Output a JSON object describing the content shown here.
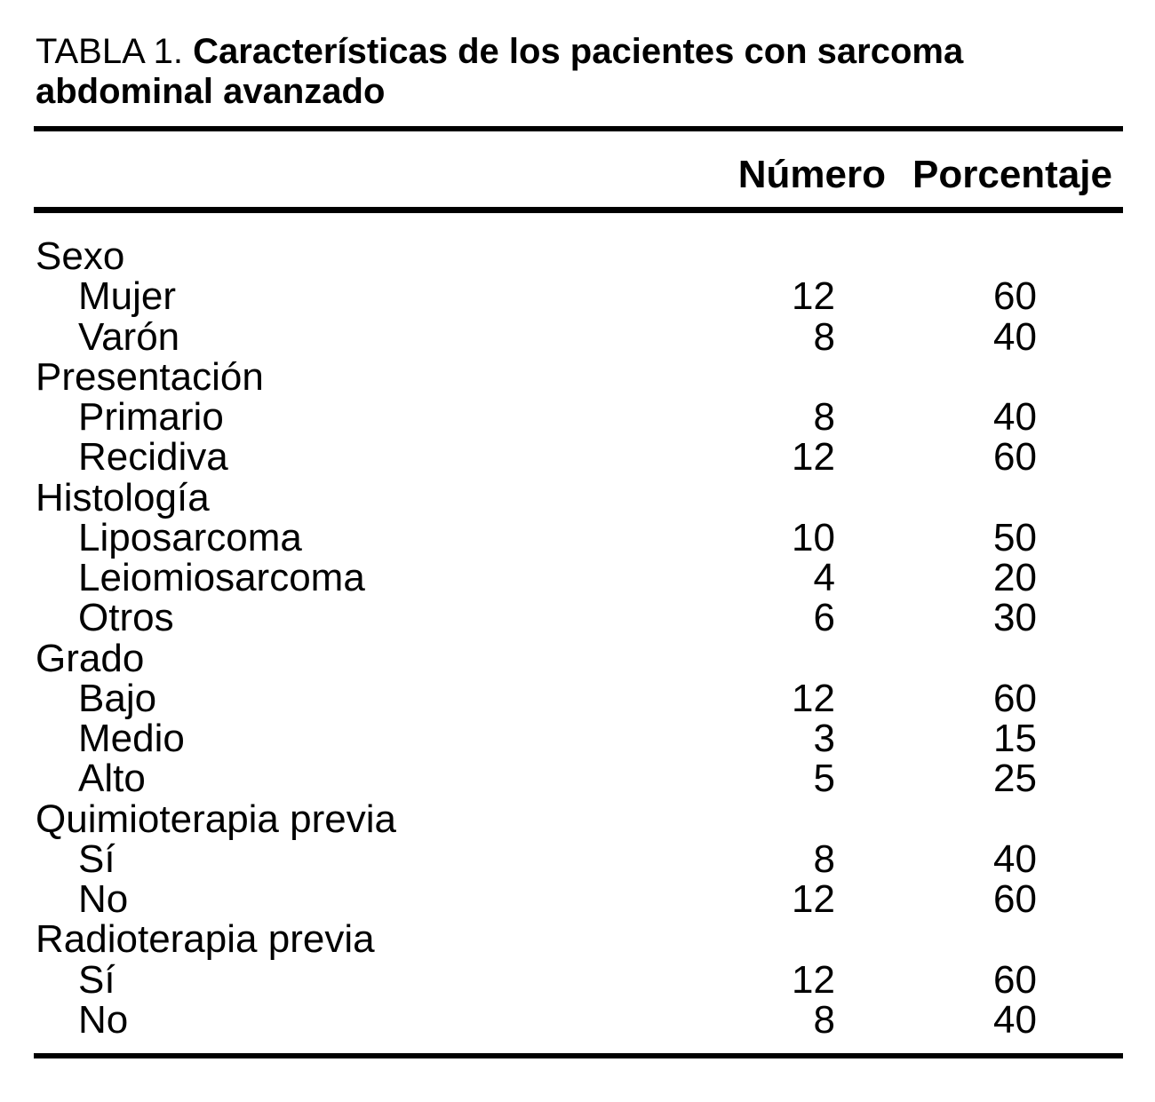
{
  "table": {
    "title": {
      "prefix": "TABLA 1. ",
      "bold_line1": "Características de los pacientes con sarcoma",
      "bold_line2": "abdominal avanzado"
    },
    "column_headers": {
      "number": "Número",
      "percentage": "Porcentaje"
    },
    "sections": [
      {
        "header": "Sexo",
        "items": [
          {
            "label": "Mujer",
            "number": 12,
            "percentage": 60
          },
          {
            "label": "Varón",
            "number": 8,
            "percentage": 40
          }
        ]
      },
      {
        "header": "Presentación",
        "items": [
          {
            "label": "Primario",
            "number": 8,
            "percentage": 40
          },
          {
            "label": "Recidiva",
            "number": 12,
            "percentage": 60
          }
        ]
      },
      {
        "header": "Histología",
        "items": [
          {
            "label": "Liposarcoma",
            "number": 10,
            "percentage": 50
          },
          {
            "label": "Leiomiosarcoma",
            "number": 4,
            "percentage": 20
          },
          {
            "label": "Otros",
            "number": 6,
            "percentage": 30
          }
        ]
      },
      {
        "header": "Grado",
        "items": [
          {
            "label": "Bajo",
            "number": 12,
            "percentage": 60
          },
          {
            "label": "Medio",
            "number": 3,
            "percentage": 15
          },
          {
            "label": "Alto",
            "number": 5,
            "percentage": 25
          }
        ]
      },
      {
        "header": "Quimioterapia previa",
        "items": [
          {
            "label": "Sí",
            "number": 8,
            "percentage": 40
          },
          {
            "label": "No",
            "number": 12,
            "percentage": 60
          }
        ]
      },
      {
        "header": "Radioterapia previa",
        "items": [
          {
            "label": "Sí",
            "number": 12,
            "percentage": 60
          },
          {
            "label": "No",
            "number": 8,
            "percentage": 40
          }
        ]
      }
    ],
    "chart_data": {
      "type": "table",
      "title": "TABLA 1. Características de los pacientes con sarcoma abdominal avanzado",
      "columns": [
        "",
        "Número",
        "Porcentaje"
      ],
      "rows": [
        [
          "Sexo",
          "",
          ""
        ],
        [
          "Mujer",
          12,
          60
        ],
        [
          "Varón",
          8,
          40
        ],
        [
          "Presentación",
          "",
          ""
        ],
        [
          "Primario",
          8,
          40
        ],
        [
          "Recidiva",
          12,
          60
        ],
        [
          "Histología",
          "",
          ""
        ],
        [
          "Liposarcoma",
          10,
          50
        ],
        [
          "Leiomiosarcoma",
          4,
          20
        ],
        [
          "Otros",
          6,
          30
        ],
        [
          "Grado",
          "",
          ""
        ],
        [
          "Bajo",
          12,
          60
        ],
        [
          "Medio",
          3,
          15
        ],
        [
          "Alto",
          5,
          25
        ],
        [
          "Quimioterapia previa",
          "",
          ""
        ],
        [
          "Sí",
          8,
          40
        ],
        [
          "No",
          12,
          60
        ],
        [
          "Radioterapia previa",
          "",
          ""
        ],
        [
          "Sí",
          12,
          60
        ],
        [
          "No",
          8,
          40
        ]
      ]
    },
    "colors": {
      "text": "#000000",
      "background": "#ffffff",
      "rule": "#000000"
    }
  }
}
